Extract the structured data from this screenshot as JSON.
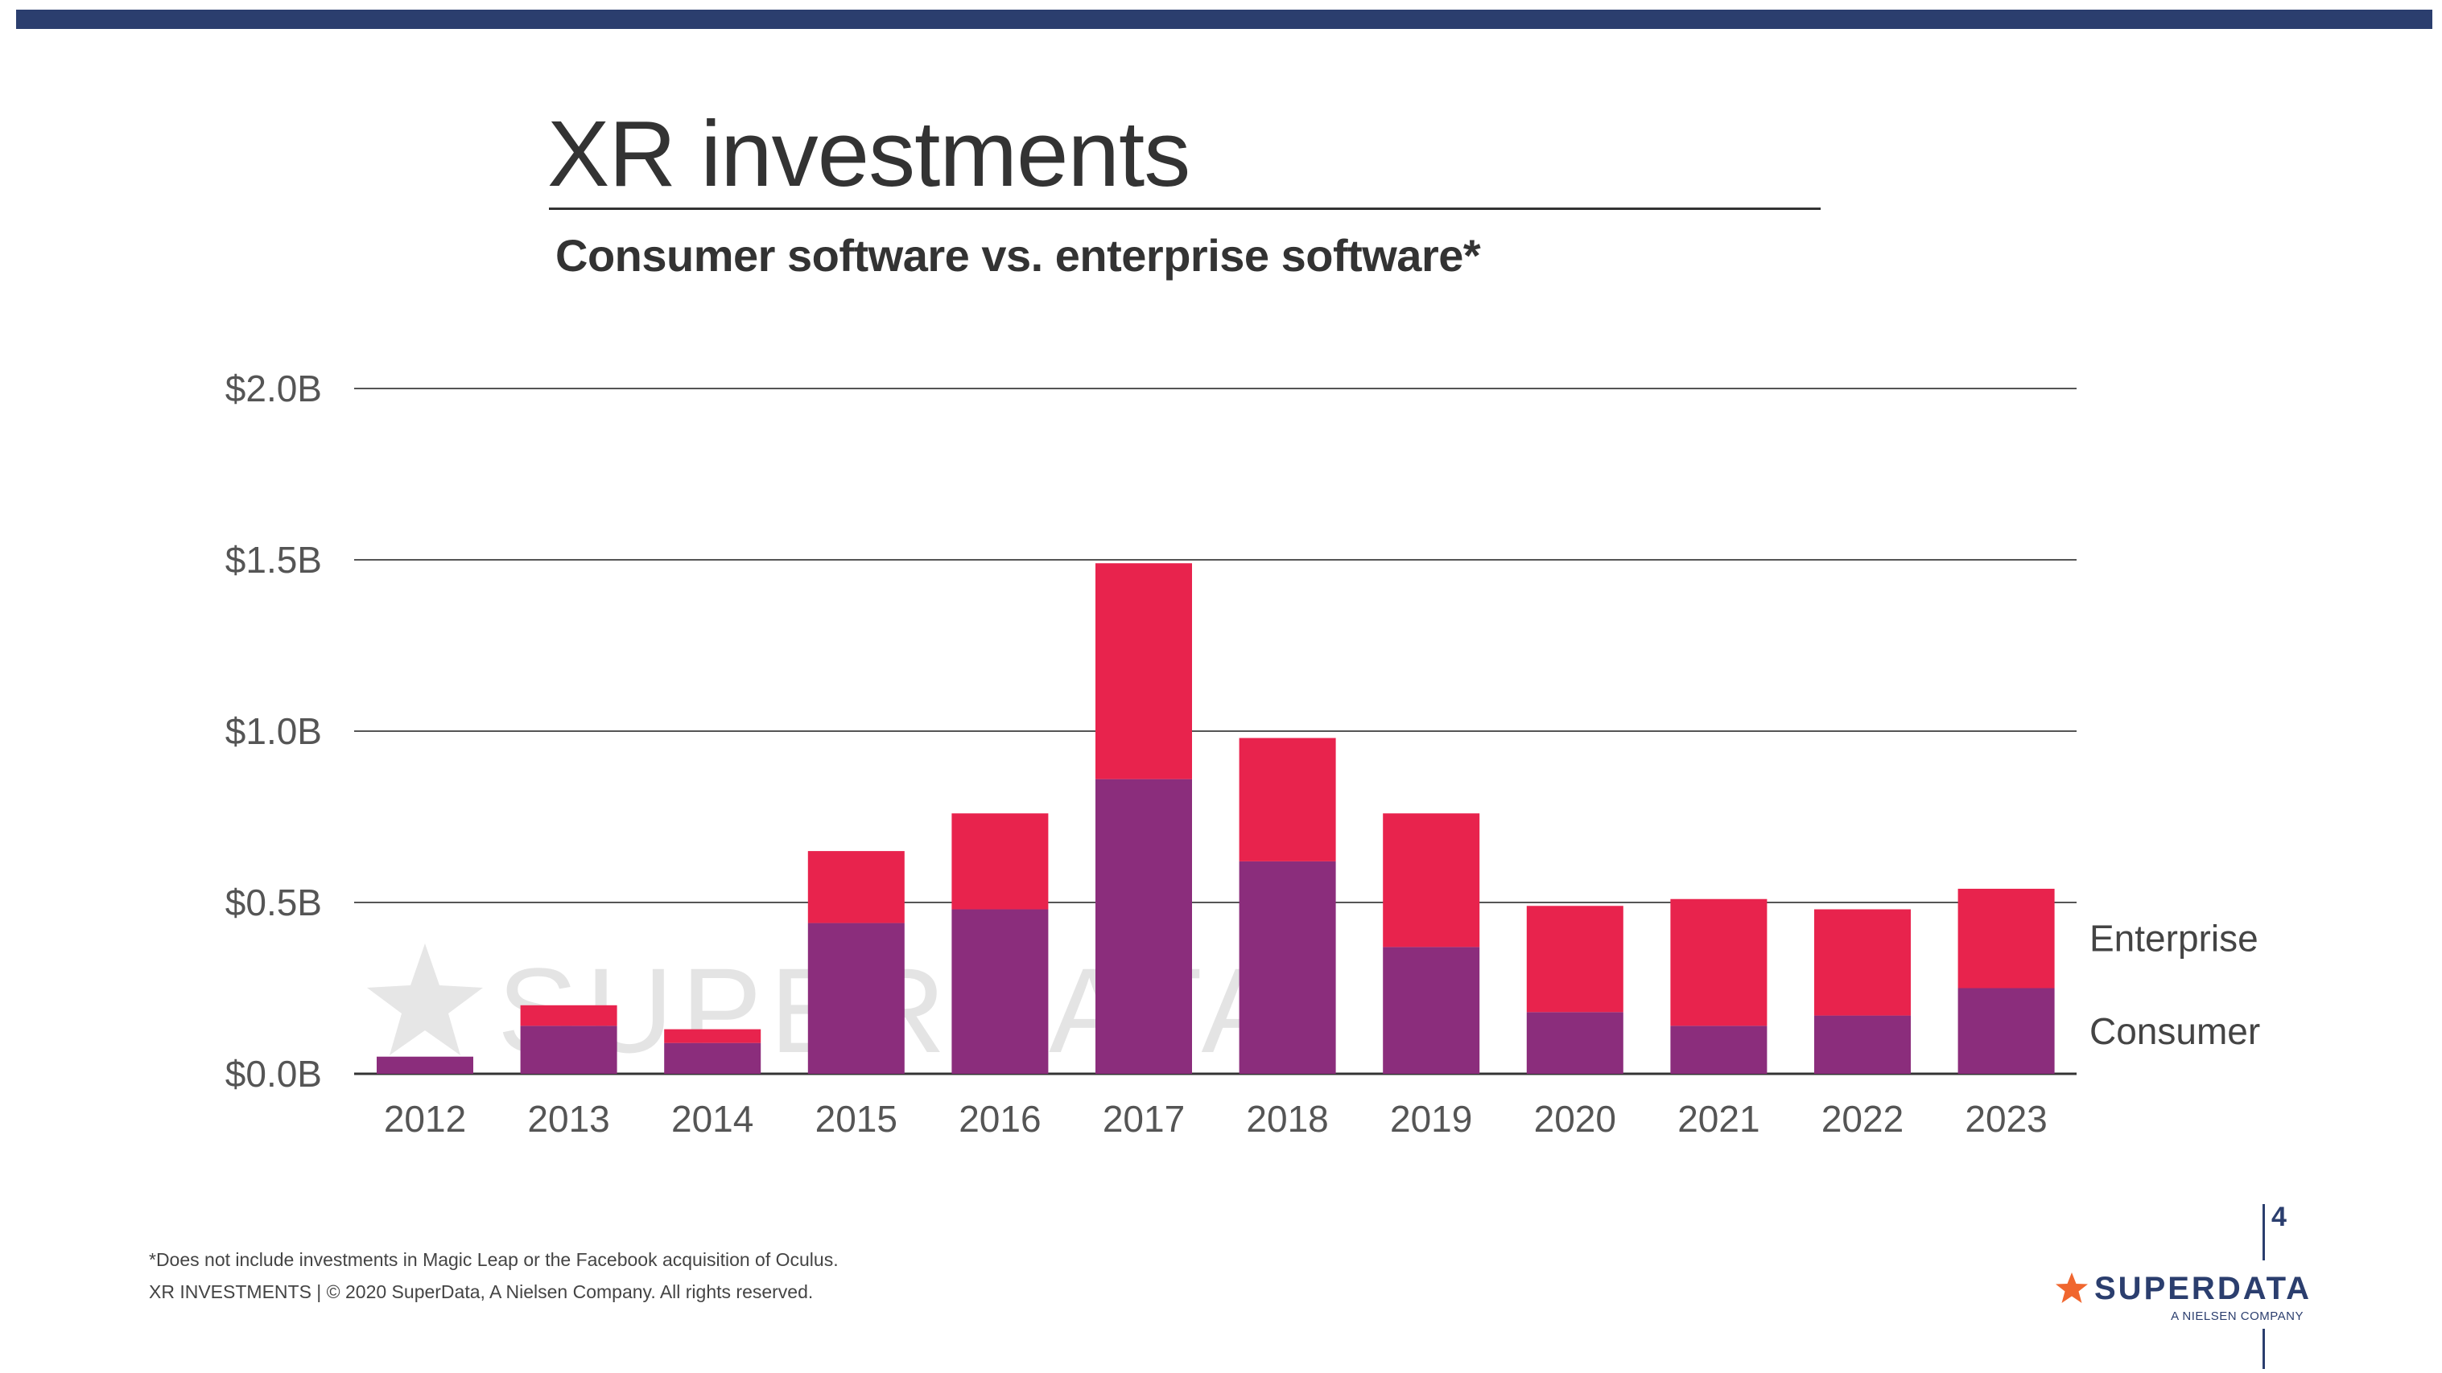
{
  "slide": {
    "title": "XR investments",
    "subtitle": "Consumer software vs. enterprise software*",
    "footnote": "*Does not include investments in Magic Leap or the Facebook acquisition of Oculus.",
    "copyright": "XR INVESTMENTS  |  © 2020 SuperData, A Nielsen Company. All rights reserved.",
    "page_number": "4",
    "watermark": "SUPERDATA",
    "logo": {
      "brand_prefix": "SUPER",
      "brand_suffix": "DATA",
      "tagline": "A NIELSEN COMPANY",
      "icon": "star-icon"
    }
  },
  "colors": {
    "top_bar": "#2b3e6e",
    "consumer": "#8b2d7c",
    "enterprise": "#e8234d",
    "logo_star": "#f0662e",
    "gridline": "#555555"
  },
  "chart_data": {
    "type": "bar",
    "stacked": true,
    "categories": [
      "2012",
      "2013",
      "2014",
      "2015",
      "2016",
      "2017",
      "2018",
      "2019",
      "2020",
      "2021",
      "2022",
      "2023"
    ],
    "series": [
      {
        "name": "Consumer",
        "values": [
          0.05,
          0.14,
          0.09,
          0.44,
          0.48,
          0.86,
          0.62,
          0.37,
          0.18,
          0.14,
          0.17,
          0.25
        ]
      },
      {
        "name": "Enterprise",
        "values": [
          0.0,
          0.06,
          0.04,
          0.21,
          0.28,
          0.63,
          0.36,
          0.39,
          0.31,
          0.37,
          0.31,
          0.29
        ]
      }
    ],
    "y_ticks": [
      "$0.0B",
      "$0.5B",
      "$1.0B",
      "$1.5B",
      "$2.0B"
    ],
    "y_tick_values": [
      0,
      0.5,
      1.0,
      1.5,
      2.0
    ],
    "ylim": [
      0,
      2.0
    ],
    "grid": true,
    "legend": "right"
  }
}
